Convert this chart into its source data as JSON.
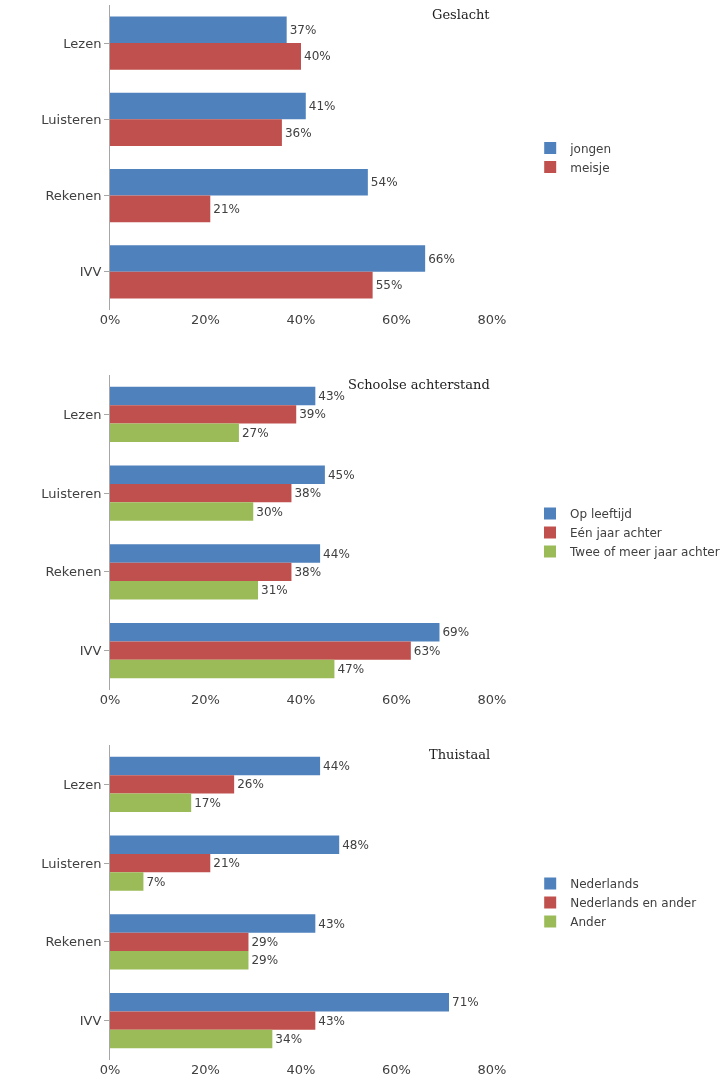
{
  "chart_data": [
    {
      "type": "bar",
      "orientation": "horizontal",
      "title": "Geslacht",
      "categories": [
        "Lezen",
        "Luisteren",
        "Rekenen",
        "IVV"
      ],
      "series": [
        {
          "name": "jongen",
          "color": "#4f81bd",
          "values": [
            37,
            41,
            54,
            66
          ],
          "value_labels": [
            "37%",
            "41%",
            "54%",
            "66%"
          ]
        },
        {
          "name": "meisje",
          "color": "#c0504d",
          "values": [
            40,
            36,
            21,
            55
          ],
          "value_labels": [
            "40%",
            "36%",
            "21%",
            "55%"
          ]
        }
      ],
      "xlim": [
        0,
        80
      ],
      "xticks": [
        {
          "value": 0,
          "label": "0%"
        },
        {
          "value": 20,
          "label": "20%"
        },
        {
          "value": 40,
          "label": "40%"
        },
        {
          "value": 60,
          "label": "60%"
        },
        {
          "value": 80,
          "label": "80%"
        }
      ],
      "legend": "right"
    },
    {
      "type": "bar",
      "orientation": "horizontal",
      "title": "Schoolse achterstand",
      "categories": [
        "Lezen",
        "Luisteren",
        "Rekenen",
        "IVV"
      ],
      "series": [
        {
          "name": "Op leeftijd",
          "color": "#4f81bd",
          "values": [
            43,
            45,
            44,
            69
          ],
          "value_labels": [
            "43%",
            "45%",
            "44%",
            "69%"
          ]
        },
        {
          "name": "Eén jaar achter",
          "color": "#c0504d",
          "values": [
            39,
            38,
            38,
            63
          ],
          "value_labels": [
            "39%",
            "38%",
            "38%",
            "63%"
          ]
        },
        {
          "name": "Twee of meer jaar achter",
          "color": "#9bbb59",
          "values": [
            27,
            30,
            31,
            47
          ],
          "value_labels": [
            "27%",
            "30%",
            "31%",
            "47%"
          ]
        }
      ],
      "xlim": [
        0,
        80
      ],
      "xticks": [
        {
          "value": 0,
          "label": "0%"
        },
        {
          "value": 20,
          "label": "20%"
        },
        {
          "value": 40,
          "label": "40%"
        },
        {
          "value": 60,
          "label": "60%"
        },
        {
          "value": 80,
          "label": "80%"
        }
      ],
      "legend": "right"
    },
    {
      "type": "bar",
      "orientation": "horizontal",
      "title": "Thuistaal",
      "categories": [
        "Lezen",
        "Luisteren",
        "Rekenen",
        "IVV"
      ],
      "series": [
        {
          "name": "Nederlands",
          "color": "#4f81bd",
          "values": [
            44,
            48,
            43,
            71
          ],
          "value_labels": [
            "44%",
            "48%",
            "43%",
            "71%"
          ]
        },
        {
          "name": "Nederlands en ander",
          "color": "#c0504d",
          "values": [
            26,
            21,
            29,
            43
          ],
          "value_labels": [
            "26%",
            "21%",
            "29%",
            "43%"
          ]
        },
        {
          "name": "Ander",
          "color": "#9bbb59",
          "values": [
            17,
            7,
            29,
            34
          ],
          "value_labels": [
            "17%",
            "7%",
            "29%",
            "34%"
          ]
        }
      ],
      "xlim": [
        0,
        80
      ],
      "xticks": [
        {
          "value": 0,
          "label": "0%"
        },
        {
          "value": 20,
          "label": "20%"
        },
        {
          "value": 40,
          "label": "40%"
        },
        {
          "value": 60,
          "label": "60%"
        },
        {
          "value": 80,
          "label": "80%"
        }
      ],
      "legend": "right"
    }
  ]
}
